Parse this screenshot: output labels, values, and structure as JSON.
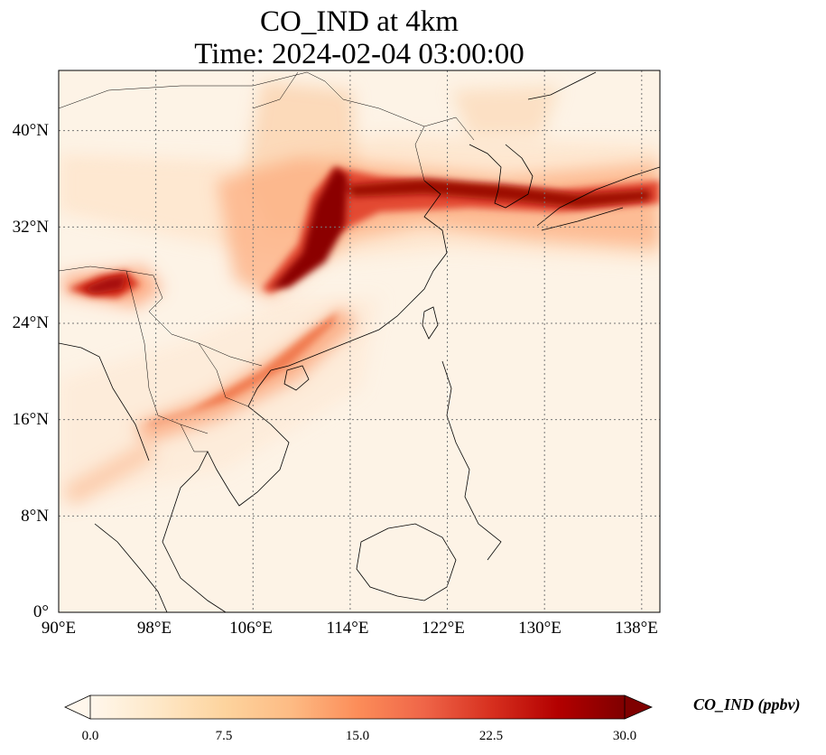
{
  "title_line1": "CO_IND at 4km",
  "title_line2": "Time: 2024-02-04 03:00:00",
  "map": {
    "lon_range": [
      90,
      139.5
    ],
    "lat_range": [
      0,
      45
    ],
    "gridlines": "dotted",
    "lat_ticks": [
      {
        "value": 40,
        "label": "40°N"
      },
      {
        "value": 32,
        "label": "32°N"
      },
      {
        "value": 24,
        "label": "24°N"
      },
      {
        "value": 16,
        "label": "16°N"
      },
      {
        "value": 8,
        "label": "8°N"
      },
      {
        "value": 0,
        "label": "0°"
      }
    ],
    "lon_ticks": [
      {
        "value": 90,
        "label": "90°E"
      },
      {
        "value": 98,
        "label": "98°E"
      },
      {
        "value": 106,
        "label": "106°E"
      },
      {
        "value": 114,
        "label": "114°E"
      },
      {
        "value": 122,
        "label": "122°E"
      },
      {
        "value": 130,
        "label": "130°E"
      },
      {
        "value": 138,
        "label": "138°E"
      }
    ]
  },
  "colorbar": {
    "label": "CO_IND (ppbv)",
    "min": 0.0,
    "max": 30.0,
    "extend": "both",
    "ticks": [
      "0.0",
      "7.5",
      "15.0",
      "22.5",
      "30.0"
    ],
    "colormap": "OrRd",
    "colors": [
      "#fff7ec",
      "#fee8c8",
      "#fdd49e",
      "#fdbb84",
      "#fc8d59",
      "#ef6548",
      "#d7301f",
      "#b30000",
      "#7f0000"
    ]
  }
}
